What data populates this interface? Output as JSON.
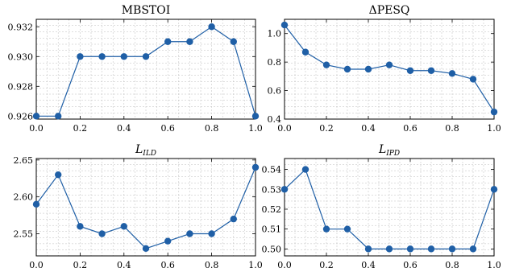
{
  "chart_data": [
    {
      "type": "line",
      "title": "MBSTOI",
      "x": [
        0.0,
        0.1,
        0.2,
        0.3,
        0.4,
        0.5,
        0.6,
        0.7,
        0.8,
        0.9,
        1.0
      ],
      "values": [
        0.926,
        0.926,
        0.93,
        0.93,
        0.93,
        0.93,
        0.931,
        0.931,
        0.932,
        0.931,
        0.926
      ],
      "xlim": [
        0.0,
        1.0
      ],
      "ylim": [
        0.9258,
        0.9325
      ],
      "xticks": [
        "0.0",
        "0.2",
        "0.4",
        "0.6",
        "0.8",
        "1.0"
      ],
      "yticks": [
        "0.926",
        "0.928",
        "0.930",
        "0.932"
      ],
      "grid": true
    },
    {
      "type": "line",
      "title": "ΔPESQ",
      "x": [
        0.0,
        0.1,
        0.2,
        0.3,
        0.4,
        0.5,
        0.6,
        0.7,
        0.8,
        0.9,
        1.0
      ],
      "values": [
        1.06,
        0.87,
        0.78,
        0.75,
        0.75,
        0.78,
        0.74,
        0.74,
        0.72,
        0.68,
        0.45
      ],
      "xlim": [
        0.0,
        1.0
      ],
      "ylim": [
        0.4,
        1.1
      ],
      "xticks": [
        "0.0",
        "0.2",
        "0.4",
        "0.6",
        "0.8",
        "1.0"
      ],
      "yticks": [
        "0.4",
        "0.6",
        "0.8",
        "1.0"
      ],
      "grid": true
    },
    {
      "type": "line",
      "title": "L",
      "title_sub": "ILD",
      "x": [
        0.0,
        0.1,
        0.2,
        0.3,
        0.4,
        0.5,
        0.6,
        0.7,
        0.8,
        0.9,
        1.0
      ],
      "values": [
        2.59,
        2.63,
        2.56,
        2.55,
        2.56,
        2.53,
        2.54,
        2.55,
        2.55,
        2.57,
        2.64
      ],
      "xlim": [
        0.0,
        1.0
      ],
      "ylim": [
        2.52,
        2.652
      ],
      "xticks": [
        "0.0",
        "0.2",
        "0.4",
        "0.6",
        "0.8",
        "1.0"
      ],
      "yticks": [
        "2.55",
        "2.60",
        "2.65"
      ],
      "grid": true
    },
    {
      "type": "line",
      "title": "L",
      "title_sub": "IPD",
      "x": [
        0.0,
        0.1,
        0.2,
        0.3,
        0.4,
        0.5,
        0.6,
        0.7,
        0.8,
        0.9,
        1.0
      ],
      "values": [
        0.53,
        0.54,
        0.51,
        0.51,
        0.5,
        0.5,
        0.5,
        0.5,
        0.5,
        0.5,
        0.53
      ],
      "xlim": [
        0.0,
        1.0
      ],
      "ylim": [
        0.4965,
        0.5455
      ],
      "xticks": [
        "0.0",
        "0.2",
        "0.4",
        "0.6",
        "0.8",
        "1.0"
      ],
      "yticks": [
        "0.50",
        "0.51",
        "0.52",
        "0.53",
        "0.54"
      ],
      "grid": true
    }
  ],
  "colors": {
    "series": "#1f5fa6",
    "axis": "#000000",
    "grid": "#bdbdbd"
  }
}
